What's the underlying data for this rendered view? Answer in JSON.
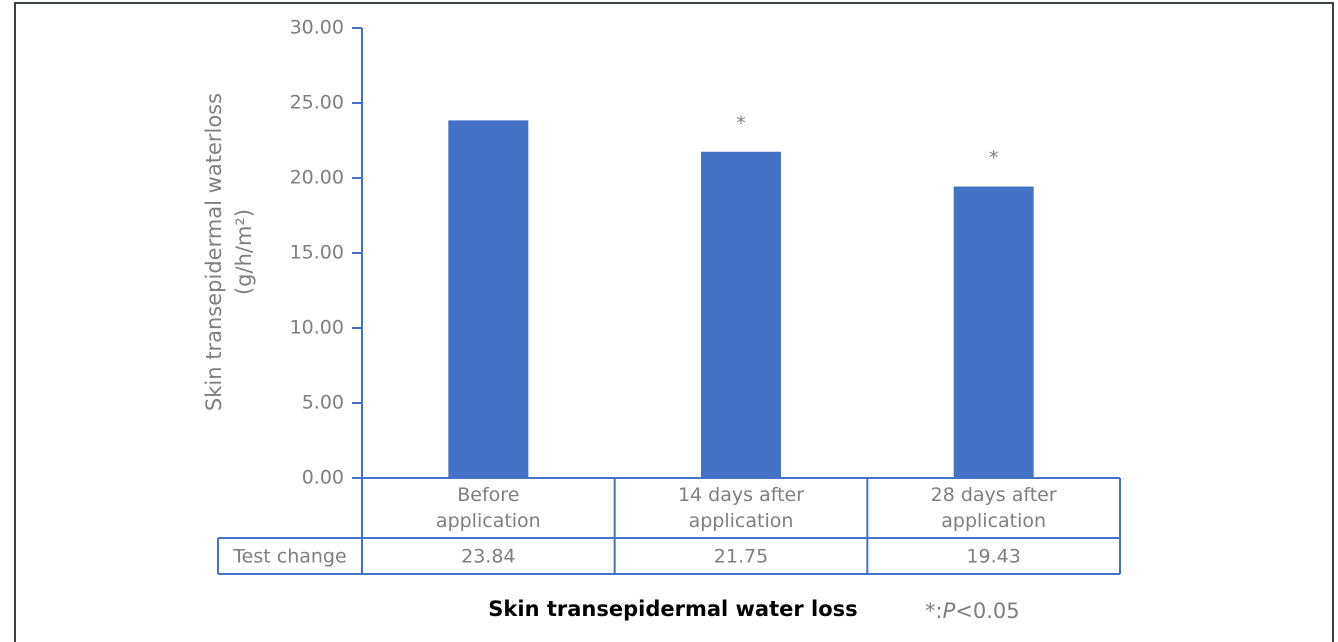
{
  "chart_data": {
    "type": "bar",
    "title": "Skin transepidermal water loss",
    "ylabel": [
      "Skin transepidermal waterloss",
      "(g/h/m²)"
    ],
    "categories": [
      "Before application",
      "14 days after application",
      "28 days after application"
    ],
    "series": [
      {
        "name": "Test change",
        "color": "#4472c4",
        "values": [
          23.84,
          21.75,
          19.43
        ]
      }
    ],
    "significance": [
      null,
      "*",
      "*"
    ],
    "ylim": [
      0,
      30
    ],
    "yticks": [
      {
        "value": 0,
        "label": "0.00"
      },
      {
        "value": 5,
        "label": "5.00"
      },
      {
        "value": 10,
        "label": "10.00"
      },
      {
        "value": 15,
        "label": "15.00"
      },
      {
        "value": 20,
        "label": "20.00"
      },
      {
        "value": 25,
        "label": "25.00"
      },
      {
        "value": 30,
        "label": "30.00"
      }
    ],
    "footnote": [
      "*:",
      "P",
      "<0.05"
    ]
  }
}
